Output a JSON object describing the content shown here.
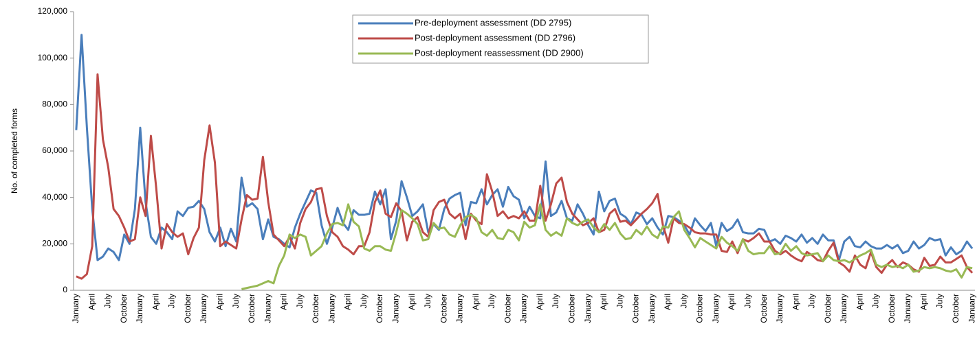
{
  "chart_data": {
    "type": "line",
    "ylabel": "No. of completed forms",
    "categories": [
      "January",
      null,
      null,
      "April",
      null,
      null,
      "July",
      null,
      null,
      "October",
      null,
      null,
      "January",
      null,
      null,
      "April",
      null,
      null,
      "July",
      null,
      null,
      "October",
      null,
      null,
      "January",
      null,
      null,
      "April",
      null,
      null,
      "July",
      null,
      null,
      "October",
      null,
      null,
      "January",
      null,
      null,
      "April",
      null,
      null,
      "July",
      null,
      null,
      "October",
      null,
      null,
      "January",
      null,
      null,
      "April",
      null,
      null,
      "July",
      null,
      null,
      "October",
      null,
      null,
      "January",
      null,
      null,
      "April",
      null,
      null,
      "July",
      null,
      null,
      "October",
      null,
      null,
      "January",
      null,
      null,
      "April",
      null,
      null,
      "July",
      null,
      null,
      "October",
      null,
      null,
      "January",
      null,
      null,
      "April",
      null,
      null,
      "July",
      null,
      null,
      "October",
      null,
      null,
      "January",
      null,
      null,
      "April",
      null,
      null,
      "July",
      null,
      null,
      "October",
      null,
      null,
      "January",
      null,
      null,
      "April",
      null,
      null,
      "July",
      null,
      null,
      "October",
      null,
      null,
      "January",
      null,
      null,
      "April",
      null,
      null,
      "July",
      null,
      null,
      "October",
      null,
      null,
      "January",
      null,
      null,
      "April",
      null,
      null,
      "July",
      null,
      null,
      "October",
      null,
      null,
      "January",
      null,
      null,
      "April",
      null,
      null,
      "July",
      null,
      null,
      "October",
      null,
      null,
      "January",
      null,
      null,
      "April",
      null,
      null,
      "July",
      null,
      null,
      "October",
      null,
      null,
      "January"
    ],
    "series": [
      {
        "name": "Pre-deployment assessment (DD 2795)",
        "color": "#4a7ebb",
        "values": [
          69000,
          110000,
          70000,
          35000,
          13000,
          14500,
          18000,
          16500,
          13000,
          24000,
          20000,
          35000,
          70000,
          38000,
          23000,
          20000,
          27000,
          25000,
          22000,
          34000,
          32000,
          35500,
          36000,
          38500,
          35000,
          25000,
          21000,
          27000,
          19000,
          26500,
          21000,
          48500,
          36000,
          37500,
          35000,
          22000,
          30500,
          23000,
          22000,
          20000,
          18500,
          27000,
          33000,
          38000,
          43000,
          42000,
          28000,
          20000,
          27000,
          35500,
          29000,
          26000,
          34500,
          32500,
          32500,
          33000,
          42500,
          37000,
          43500,
          22000,
          30000,
          47000,
          40000,
          32000,
          34000,
          37000,
          25000,
          28500,
          26000,
          35000,
          39500,
          41000,
          42000,
          28000,
          38000,
          37500,
          43500,
          37000,
          41000,
          43500,
          36000,
          44500,
          40500,
          39000,
          31000,
          36000,
          32000,
          31000,
          55500,
          32000,
          33500,
          38500,
          31000,
          30000,
          37000,
          33000,
          28000,
          24000,
          42500,
          34000,
          38500,
          39500,
          33000,
          31500,
          28500,
          33500,
          32500,
          28500,
          31000,
          27000,
          24000,
          32000,
          31500,
          30000,
          28000,
          24000,
          31000,
          28000,
          25500,
          29000,
          19000,
          29000,
          25500,
          27000,
          30500,
          25000,
          24500,
          24500,
          26500,
          26000,
          21000,
          22000,
          20000,
          23500,
          22500,
          21000,
          24000,
          20500,
          22500,
          20000,
          24000,
          21500,
          21500,
          13000,
          21000,
          23000,
          19000,
          18500,
          21000,
          19000,
          18000,
          18000,
          19500,
          18000,
          19500,
          16000,
          17000,
          21000,
          18000,
          19500,
          22500,
          21500,
          22000,
          15000,
          18500,
          15500,
          17000,
          21000,
          18000
        ]
      },
      {
        "name": "Post-deployment assessment (DD 2796)",
        "color": "#be4b48",
        "values": [
          6000,
          5000,
          7000,
          19000,
          93000,
          65000,
          53000,
          35000,
          32000,
          27000,
          21000,
          22000,
          40000,
          32000,
          66500,
          44000,
          18000,
          28500,
          25000,
          23000,
          24500,
          15500,
          22500,
          27000,
          56000,
          71000,
          55000,
          19000,
          21000,
          19500,
          18000,
          30500,
          41000,
          39000,
          39500,
          57500,
          38000,
          24000,
          21500,
          19000,
          23000,
          18000,
          29000,
          35000,
          38000,
          43500,
          44000,
          32000,
          25000,
          23000,
          19000,
          17500,
          15500,
          19000,
          19000,
          25000,
          38000,
          43000,
          33000,
          31500,
          37500,
          34000,
          21500,
          29500,
          31500,
          25000,
          23000,
          34500,
          38000,
          39000,
          33000,
          31000,
          33000,
          22000,
          33000,
          30000,
          28500,
          50000,
          42500,
          32000,
          34000,
          31000,
          32000,
          31000,
          34000,
          30000,
          30000,
          45000,
          30000,
          37000,
          46000,
          48500,
          38000,
          33000,
          30500,
          28000,
          29000,
          31000,
          25000,
          26000,
          33000,
          35000,
          29500,
          30000,
          28000,
          30500,
          33000,
          35000,
          37500,
          41500,
          28000,
          20500,
          31000,
          29000,
          28500,
          27000,
          25000,
          24500,
          24500,
          24000,
          24000,
          17000,
          16500,
          21000,
          16000,
          22000,
          21000,
          22500,
          24500,
          21000,
          21000,
          17000,
          15500,
          17000,
          15000,
          13500,
          12500,
          16500,
          15000,
          13000,
          12500,
          17000,
          20500,
          12000,
          10500,
          8000,
          15000,
          11000,
          9500,
          16500,
          10000,
          7500,
          11000,
          13000,
          10000,
          12000,
          11000,
          9000,
          8000,
          14000,
          10500,
          11000,
          14500,
          12000,
          12000,
          13500,
          15000,
          10000,
          7500
        ]
      },
      {
        "name": "Post-deployment reassessment (DD 2900)",
        "color": "#98b954",
        "values": [
          null,
          null,
          null,
          null,
          null,
          null,
          null,
          null,
          null,
          null,
          null,
          null,
          null,
          null,
          null,
          null,
          null,
          null,
          null,
          null,
          null,
          null,
          null,
          null,
          null,
          null,
          null,
          null,
          null,
          null,
          null,
          500,
          1000,
          1500,
          2000,
          3000,
          4000,
          3000,
          10500,
          15000,
          24000,
          22500,
          24000,
          23000,
          15000,
          17000,
          19000,
          24500,
          28500,
          29000,
          28000,
          37000,
          29500,
          27500,
          18000,
          17000,
          19000,
          19000,
          17500,
          17000,
          25000,
          34500,
          33000,
          31000,
          28500,
          21500,
          22000,
          29000,
          26500,
          27000,
          24000,
          23000,
          28000,
          31500,
          32500,
          31000,
          25000,
          23500,
          26000,
          22500,
          22000,
          26000,
          25000,
          21500,
          29500,
          27000,
          28000,
          37000,
          26000,
          23500,
          25000,
          23500,
          31000,
          29000,
          28000,
          29500,
          30500,
          27000,
          25000,
          28500,
          26000,
          29000,
          24500,
          22000,
          22500,
          26000,
          24000,
          27500,
          24000,
          22500,
          27500,
          27000,
          31500,
          34000,
          26000,
          22500,
          18500,
          22500,
          21000,
          19500,
          18000,
          23000,
          20500,
          19000,
          17000,
          22000,
          17000,
          15500,
          16000,
          16000,
          19000,
          15500,
          16000,
          20000,
          17000,
          19000,
          16000,
          15000,
          15500,
          16000,
          12500,
          15000,
          13000,
          12500,
          13000,
          12000,
          13500,
          15000,
          16000,
          17500,
          11000,
          10000,
          11000,
          10000,
          10500,
          9500,
          11000,
          8000,
          8500,
          10000,
          9500,
          10000,
          9500,
          8500,
          8000,
          9000,
          5500,
          10000,
          9500
        ]
      }
    ],
    "ylim": [
      0,
      120000
    ],
    "yticks": [
      0,
      {
        "value": 20000,
        "label": "20,000"
      },
      {
        "value": 40000,
        "label": "40,000"
      },
      {
        "value": 60000,
        "label": "60,000"
      },
      {
        "value": 80000,
        "label": "80,000"
      },
      {
        "value": 100000,
        "label": "100,000"
      },
      {
        "value": 120000,
        "label": "120,000"
      }
    ],
    "legend": "upper center"
  }
}
